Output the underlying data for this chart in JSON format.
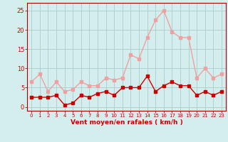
{
  "hours": [
    0,
    1,
    2,
    3,
    4,
    5,
    6,
    7,
    8,
    9,
    10,
    11,
    12,
    13,
    14,
    15,
    16,
    17,
    18,
    19,
    20,
    21,
    22,
    23
  ],
  "vent_moyen": [
    2.5,
    2.5,
    2.5,
    3.0,
    0.5,
    1.0,
    3.0,
    2.5,
    3.5,
    4.0,
    3.0,
    5.0,
    5.0,
    5.0,
    8.0,
    4.0,
    5.5,
    6.5,
    5.5,
    5.5,
    3.0,
    4.0,
    3.0,
    4.0
  ],
  "rafales": [
    6.5,
    8.5,
    4.0,
    6.5,
    4.0,
    4.5,
    6.5,
    5.5,
    5.5,
    7.5,
    7.0,
    7.5,
    13.5,
    12.5,
    18.0,
    22.5,
    25.0,
    19.5,
    18.0,
    18.0,
    7.5,
    10.0,
    7.5,
    8.5
  ],
  "moyen_color": "#cc0000",
  "rafales_color": "#f0a0a0",
  "bg_color": "#d4eeee",
  "grid_color": "#aacccc",
  "axis_color": "#aa0000",
  "tick_color": "#cc0000",
  "xlabel": "Vent moyen/en rafales ( km/h )",
  "ylim": [
    -1,
    27
  ],
  "yticks": [
    0,
    5,
    10,
    15,
    20,
    25
  ],
  "marker_size": 2.5,
  "line_width": 1.0,
  "xtick_fontsize": 5.0,
  "ytick_fontsize": 6.0,
  "xlabel_fontsize": 6.5
}
